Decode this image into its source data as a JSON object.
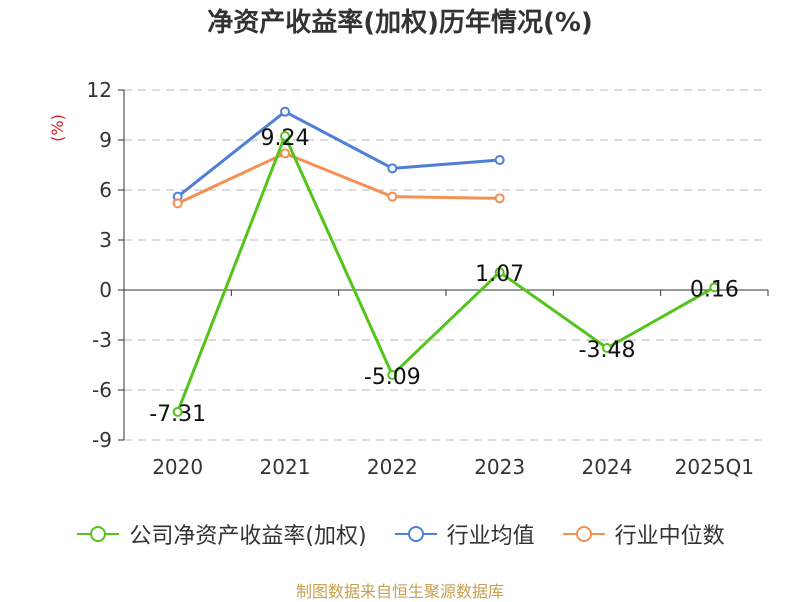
{
  "title": "净资产收益率(加权)历年情况(%)",
  "source": "制图数据来自恒生聚源数据库",
  "colors": {
    "series1": "#52c41a",
    "series2": "#4e7fd8",
    "series3": "#f39154",
    "unit": "#d32020",
    "axis": "#333333",
    "grid": "#bbbbbb"
  },
  "chart_data": {
    "type": "line",
    "categories": [
      "2020",
      "2021",
      "2022",
      "2023",
      "2024",
      "2025Q1"
    ],
    "y_unit_label": "(%)",
    "ylim": [
      -9,
      12
    ],
    "yticks": [
      12,
      9,
      6,
      3,
      0,
      -3,
      -6,
      -9
    ],
    "grid": true,
    "legend_position": "bottom",
    "series": [
      {
        "name": "公司净资产收益率(加权)",
        "values": [
          -7.31,
          9.24,
          -5.09,
          1.07,
          -3.48,
          0.16
        ],
        "labels": [
          "-7.31",
          "9.24",
          "-5.09",
          "1.07",
          "-3.48",
          "0.16"
        ]
      },
      {
        "name": "行业均值",
        "values": [
          5.6,
          10.7,
          7.3,
          7.8,
          null,
          null
        ]
      },
      {
        "name": "行业中位数",
        "values": [
          5.2,
          8.2,
          5.6,
          5.5,
          null,
          null
        ]
      }
    ]
  }
}
